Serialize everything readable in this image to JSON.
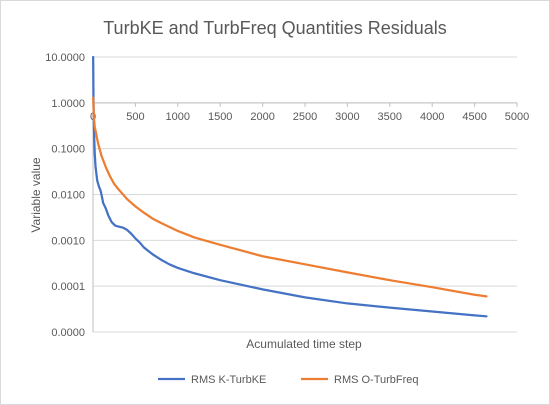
{
  "chart_data": {
    "type": "line",
    "title": "TurbKE and TurbFreq Quantities Residuals",
    "xlabel": "Acumulated time step",
    "ylabel": "Variable value",
    "xlim": [
      0,
      5000
    ],
    "x_ticks": [
      0,
      500,
      1000,
      1500,
      2000,
      2500,
      3000,
      3500,
      4000,
      4500,
      5000
    ],
    "x_tick_labels": [
      "0",
      "500",
      "1000",
      "1500",
      "2000",
      "2500",
      "3000",
      "3500",
      "4000",
      "4500",
      "5000"
    ],
    "ylim": [
      1e-05,
      10
    ],
    "y_scale": "log",
    "y_ticks": [
      10,
      1,
      0.1,
      0.01,
      0.001,
      0.0001,
      1e-05
    ],
    "y_tick_labels": [
      "10.0000",
      "1.0000",
      "0.1000",
      "0.0100",
      "0.0010",
      "0.0001",
      "0.0000"
    ],
    "x_axis_crosses_y_at": 1,
    "grid": "horizontal",
    "legend": "bottom",
    "series": [
      {
        "name": "RMS K-TurbKE",
        "color": "#4472C4",
        "points": [
          [
            2,
            10
          ],
          [
            5,
            1.5
          ],
          [
            10,
            0.3
          ],
          [
            20,
            0.08
          ],
          [
            30,
            0.04
          ],
          [
            50,
            0.02
          ],
          [
            70,
            0.015
          ],
          [
            90,
            0.012
          ],
          [
            100,
            0.01
          ],
          [
            120,
            0.0065
          ],
          [
            150,
            0.005
          ],
          [
            180,
            0.0035
          ],
          [
            220,
            0.0025
          ],
          [
            260,
            0.0021
          ],
          [
            300,
            0.002
          ],
          [
            350,
            0.0019
          ],
          [
            400,
            0.0017
          ],
          [
            450,
            0.0014
          ],
          [
            500,
            0.0011
          ],
          [
            550,
            0.0009
          ],
          [
            600,
            0.0007
          ],
          [
            700,
            0.0005
          ],
          [
            800,
            0.00038
          ],
          [
            900,
            0.0003
          ],
          [
            1000,
            0.00025
          ],
          [
            1200,
            0.00019
          ],
          [
            1500,
            0.000135
          ],
          [
            2000,
            8.5e-05
          ],
          [
            2500,
            5.7e-05
          ],
          [
            3000,
            4.2e-05
          ],
          [
            3500,
            3.4e-05
          ],
          [
            4000,
            2.8e-05
          ],
          [
            4500,
            2.3e-05
          ],
          [
            4640,
            2.2e-05
          ]
        ]
      },
      {
        "name": "RMS O-TurbFreq",
        "color": "#ED7D31",
        "points": [
          [
            2,
            1.3
          ],
          [
            10,
            0.5
          ],
          [
            20,
            0.3
          ],
          [
            40,
            0.2
          ],
          [
            60,
            0.13
          ],
          [
            100,
            0.07
          ],
          [
            150,
            0.04
          ],
          [
            200,
            0.025
          ],
          [
            250,
            0.017
          ],
          [
            300,
            0.013
          ],
          [
            400,
            0.008
          ],
          [
            500,
            0.0055
          ],
          [
            600,
            0.004
          ],
          [
            700,
            0.003
          ],
          [
            800,
            0.0024
          ],
          [
            1000,
            0.0016
          ],
          [
            1200,
            0.00115
          ],
          [
            1500,
            0.0008
          ],
          [
            2000,
            0.00045
          ],
          [
            2500,
            0.0003
          ],
          [
            3000,
            0.0002
          ],
          [
            3500,
            0.000135
          ],
          [
            4000,
            9.5e-05
          ],
          [
            4500,
            6.5e-05
          ],
          [
            4640,
            6e-05
          ]
        ]
      }
    ]
  }
}
